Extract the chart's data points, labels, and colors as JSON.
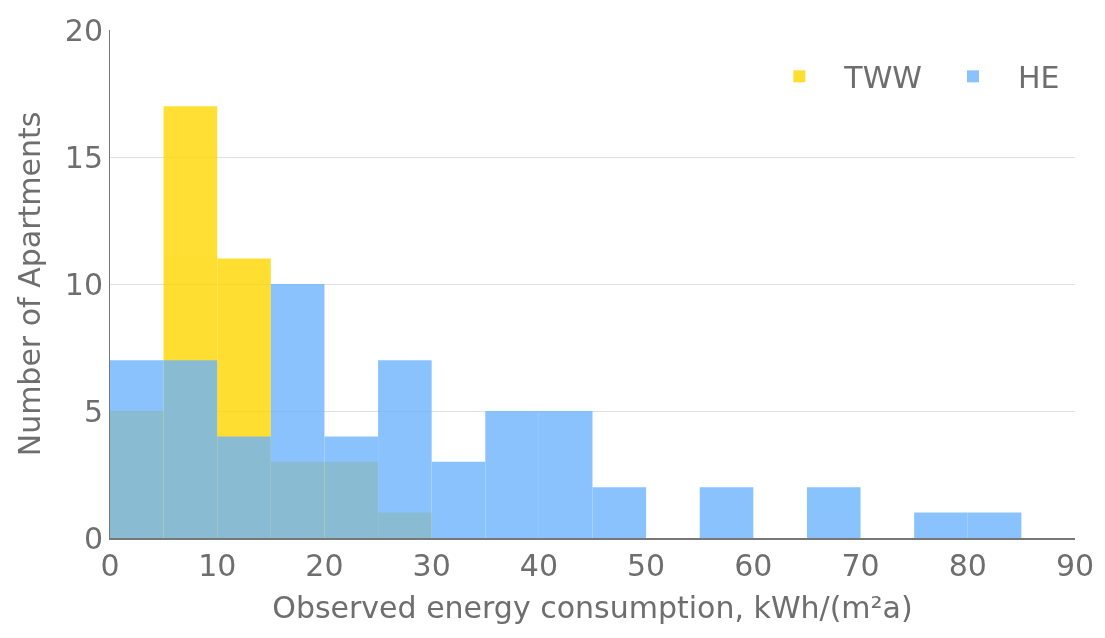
{
  "chart_data": {
    "type": "histogram",
    "xlabel": "Observed energy consumption, kWh/(m²a)",
    "ylabel": "Number of Apartments",
    "bins": [
      0,
      5,
      10,
      15,
      20,
      25,
      30,
      35,
      40,
      45,
      50,
      55,
      60,
      65,
      70,
      75,
      80,
      85
    ],
    "series": [
      {
        "name": "TWW",
        "color": "#ffd700",
        "values": [
          5,
          17,
          11,
          3,
          3,
          1,
          0,
          0,
          0,
          0,
          0,
          0,
          0,
          0,
          0,
          0,
          0
        ]
      },
      {
        "name": "HE",
        "color": "#6cb4fc",
        "values": [
          7,
          7,
          4,
          10,
          4,
          7,
          3,
          5,
          5,
          2,
          0,
          2,
          0,
          2,
          0,
          1,
          1
        ]
      }
    ],
    "xlim": [
      0,
      90
    ],
    "xticks": [
      0,
      10,
      20,
      30,
      40,
      50,
      60,
      70,
      80,
      90
    ],
    "ylim": [
      0,
      20
    ],
    "yticks": [
      0,
      5,
      10,
      15,
      20
    ],
    "grid": "y",
    "legend": "top right"
  }
}
